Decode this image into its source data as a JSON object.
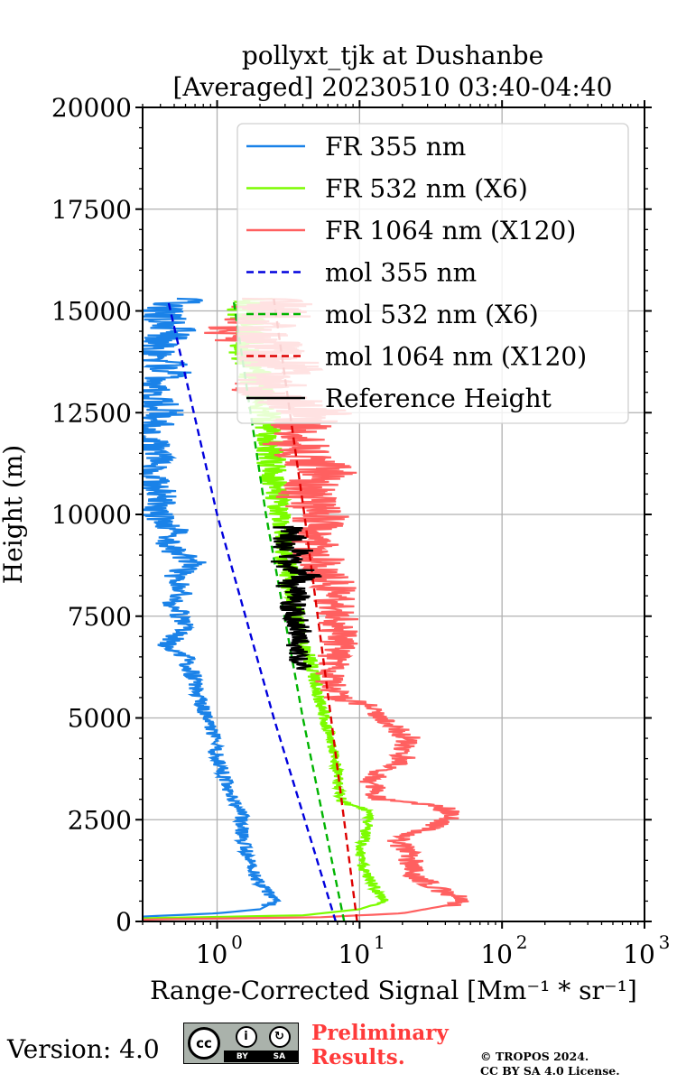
{
  "chart_data": {
    "type": "line",
    "title_line1": "pollyxt_tjk at Dushanbe",
    "title_line2": "[Averaged] 20230510 03:40-04:40",
    "xlabel": "Range-Corrected Signal [Mm⁻¹ * sr⁻¹]",
    "ylabel": "Height (m)",
    "xscale": "log",
    "xlim": [
      0.3,
      1000
    ],
    "ylim": [
      0,
      20000
    ],
    "yticks": [
      0,
      2500,
      5000,
      7500,
      10000,
      12500,
      15000,
      17500,
      20000
    ],
    "ytick_labels": [
      "0",
      "2500",
      "5000",
      "7500",
      "10000",
      "12500",
      "15000",
      "17500",
      "20000"
    ],
    "xticks": [
      1,
      10,
      100,
      1000
    ],
    "xtick_labels": [
      [
        "10",
        "0"
      ],
      [
        "10",
        "1"
      ],
      [
        "10",
        "2"
      ],
      [
        "10",
        "3"
      ]
    ],
    "grid": true,
    "legend_position": "upper-right",
    "series": [
      {
        "name": "FR 355 nm",
        "color": "#1a82e8",
        "style": "solid",
        "noise": 0.05,
        "points": [
          [
            0.3,
            0
          ],
          [
            0.3,
            120
          ],
          [
            1.0,
            200
          ],
          [
            2.0,
            300
          ],
          [
            2.6,
            500
          ],
          [
            2.3,
            700
          ],
          [
            2.0,
            900
          ],
          [
            1.8,
            1200
          ],
          [
            1.6,
            1700
          ],
          [
            1.5,
            2200
          ],
          [
            1.48,
            2700
          ],
          [
            1.3,
            2900
          ],
          [
            1.15,
            3500
          ],
          [
            1.0,
            4000
          ],
          [
            0.95,
            4500
          ],
          [
            0.85,
            5000
          ],
          [
            0.75,
            5500
          ],
          [
            0.68,
            6000
          ],
          [
            0.6,
            6500
          ],
          [
            0.45,
            6800
          ],
          [
            0.58,
            7200
          ],
          [
            0.55,
            7600
          ],
          [
            0.45,
            7800
          ],
          [
            0.6,
            8100
          ],
          [
            0.5,
            8500
          ],
          [
            0.7,
            8800
          ],
          [
            0.45,
            9200
          ],
          [
            0.5,
            9600
          ],
          [
            0.38,
            10000
          ],
          [
            0.4,
            10500
          ],
          [
            0.35,
            11000
          ],
          [
            0.38,
            11500
          ],
          [
            0.32,
            12000
          ],
          [
            0.45,
            12500
          ],
          [
            0.32,
            13000
          ],
          [
            0.5,
            13500
          ],
          [
            0.35,
            14000
          ],
          [
            0.5,
            14500
          ],
          [
            0.4,
            15000
          ],
          [
            0.6,
            15300
          ]
        ]
      },
      {
        "name": "FR 532 nm (X6)",
        "color": "#7cfc00",
        "style": "solid",
        "noise": 0.04,
        "points": [
          [
            0.3,
            0
          ],
          [
            0.3,
            80
          ],
          [
            4.0,
            150
          ],
          [
            10.0,
            300
          ],
          [
            15.0,
            500
          ],
          [
            13.0,
            800
          ],
          [
            11.0,
            1200
          ],
          [
            10.0,
            1600
          ],
          [
            11.0,
            2200
          ],
          [
            12.0,
            2700
          ],
          [
            7.5,
            2950
          ],
          [
            7.0,
            3300
          ],
          [
            7.0,
            3800
          ],
          [
            6.5,
            4200
          ],
          [
            6.0,
            4700
          ],
          [
            5.5,
            5200
          ],
          [
            5.0,
            5700
          ],
          [
            4.6,
            6200
          ],
          [
            4.2,
            6700
          ],
          [
            3.6,
            7500
          ],
          [
            3.3,
            8200
          ],
          [
            3.0,
            9000
          ],
          [
            2.8,
            9800
          ],
          [
            2.6,
            10500
          ],
          [
            2.4,
            11200
          ],
          [
            2.3,
            12000
          ],
          [
            2.2,
            12500
          ],
          [
            2.0,
            13000
          ],
          [
            1.8,
            13500
          ],
          [
            1.6,
            14000
          ],
          [
            1.8,
            14500
          ],
          [
            1.5,
            15000
          ],
          [
            2.0,
            15300
          ]
        ]
      },
      {
        "name": "FR 1064 nm (X120)",
        "color": "#ff6060",
        "style": "solid",
        "noise": 0.09,
        "points": [
          [
            0.3,
            0
          ],
          [
            0.3,
            50
          ],
          [
            5.0,
            100
          ],
          [
            20.0,
            200
          ],
          [
            60.0,
            500
          ],
          [
            40.0,
            700
          ],
          [
            25.0,
            1100
          ],
          [
            22.0,
            1700
          ],
          [
            18.0,
            2000
          ],
          [
            30.0,
            2300
          ],
          [
            48.0,
            2600
          ],
          [
            35.0,
            2850
          ],
          [
            14.0,
            3000
          ],
          [
            12.0,
            3500
          ],
          [
            20.0,
            4000
          ],
          [
            22.0,
            4500
          ],
          [
            14.0,
            5000
          ],
          [
            11.0,
            5300
          ],
          [
            7.0,
            5500
          ],
          [
            6.0,
            6000
          ],
          [
            7.5,
            7000
          ],
          [
            7.0,
            7500
          ],
          [
            6.5,
            8300
          ],
          [
            5.0,
            9000
          ],
          [
            4.8,
            9500
          ],
          [
            5.5,
            10000
          ],
          [
            4.0,
            10500
          ],
          [
            6.0,
            11000
          ],
          [
            4.0,
            11500
          ],
          [
            3.2,
            12000
          ],
          [
            5.0,
            12500
          ],
          [
            2.0,
            13000
          ],
          [
            3.0,
            13500
          ],
          [
            2.5,
            14000
          ],
          [
            1.5,
            14500
          ],
          [
            3.0,
            15000
          ],
          [
            2.0,
            15300
          ]
        ]
      },
      {
        "name": "mol 355 nm",
        "color": "#0000dd",
        "style": "dashed",
        "points": [
          [
            6.8,
            0
          ],
          [
            2.5,
            5000
          ],
          [
            1.0,
            10000
          ],
          [
            0.45,
            15300
          ]
        ]
      },
      {
        "name": "mol 532 nm (X6)",
        "color": "#00b400",
        "style": "dashed",
        "points": [
          [
            7.8,
            0
          ],
          [
            4.0,
            5000
          ],
          [
            2.2,
            10000
          ],
          [
            1.3,
            15300
          ]
        ]
      },
      {
        "name": "mol 1064 nm (X120)",
        "color": "#dd0000",
        "style": "dashed",
        "points": [
          [
            9.6,
            0
          ],
          [
            6.3,
            5000
          ],
          [
            4.1,
            10000
          ],
          [
            2.5,
            15300
          ]
        ]
      },
      {
        "name": "Reference Height",
        "color": "#000000",
        "style": "solid",
        "noise": 0.06,
        "points": [
          [
            4.0,
            6200
          ],
          [
            3.6,
            6700
          ],
          [
            3.8,
            7300
          ],
          [
            3.4,
            7700
          ],
          [
            3.6,
            8000
          ],
          [
            3.2,
            8300
          ],
          [
            4.5,
            8500
          ],
          [
            3.0,
            8800
          ],
          [
            3.8,
            9100
          ],
          [
            2.8,
            9300
          ],
          [
            3.5,
            9500
          ],
          [
            3.0,
            9700
          ]
        ]
      }
    ]
  },
  "footer": {
    "version": "Version: 4.0",
    "cc_label": "cc",
    "cc_by": "BY",
    "cc_sa": "SA",
    "prelim_line1": "Preliminary",
    "prelim_line2": "Results.",
    "copyright_line1": "© TROPOS 2024.",
    "copyright_line2": "CC BY SA 4.0 License."
  }
}
